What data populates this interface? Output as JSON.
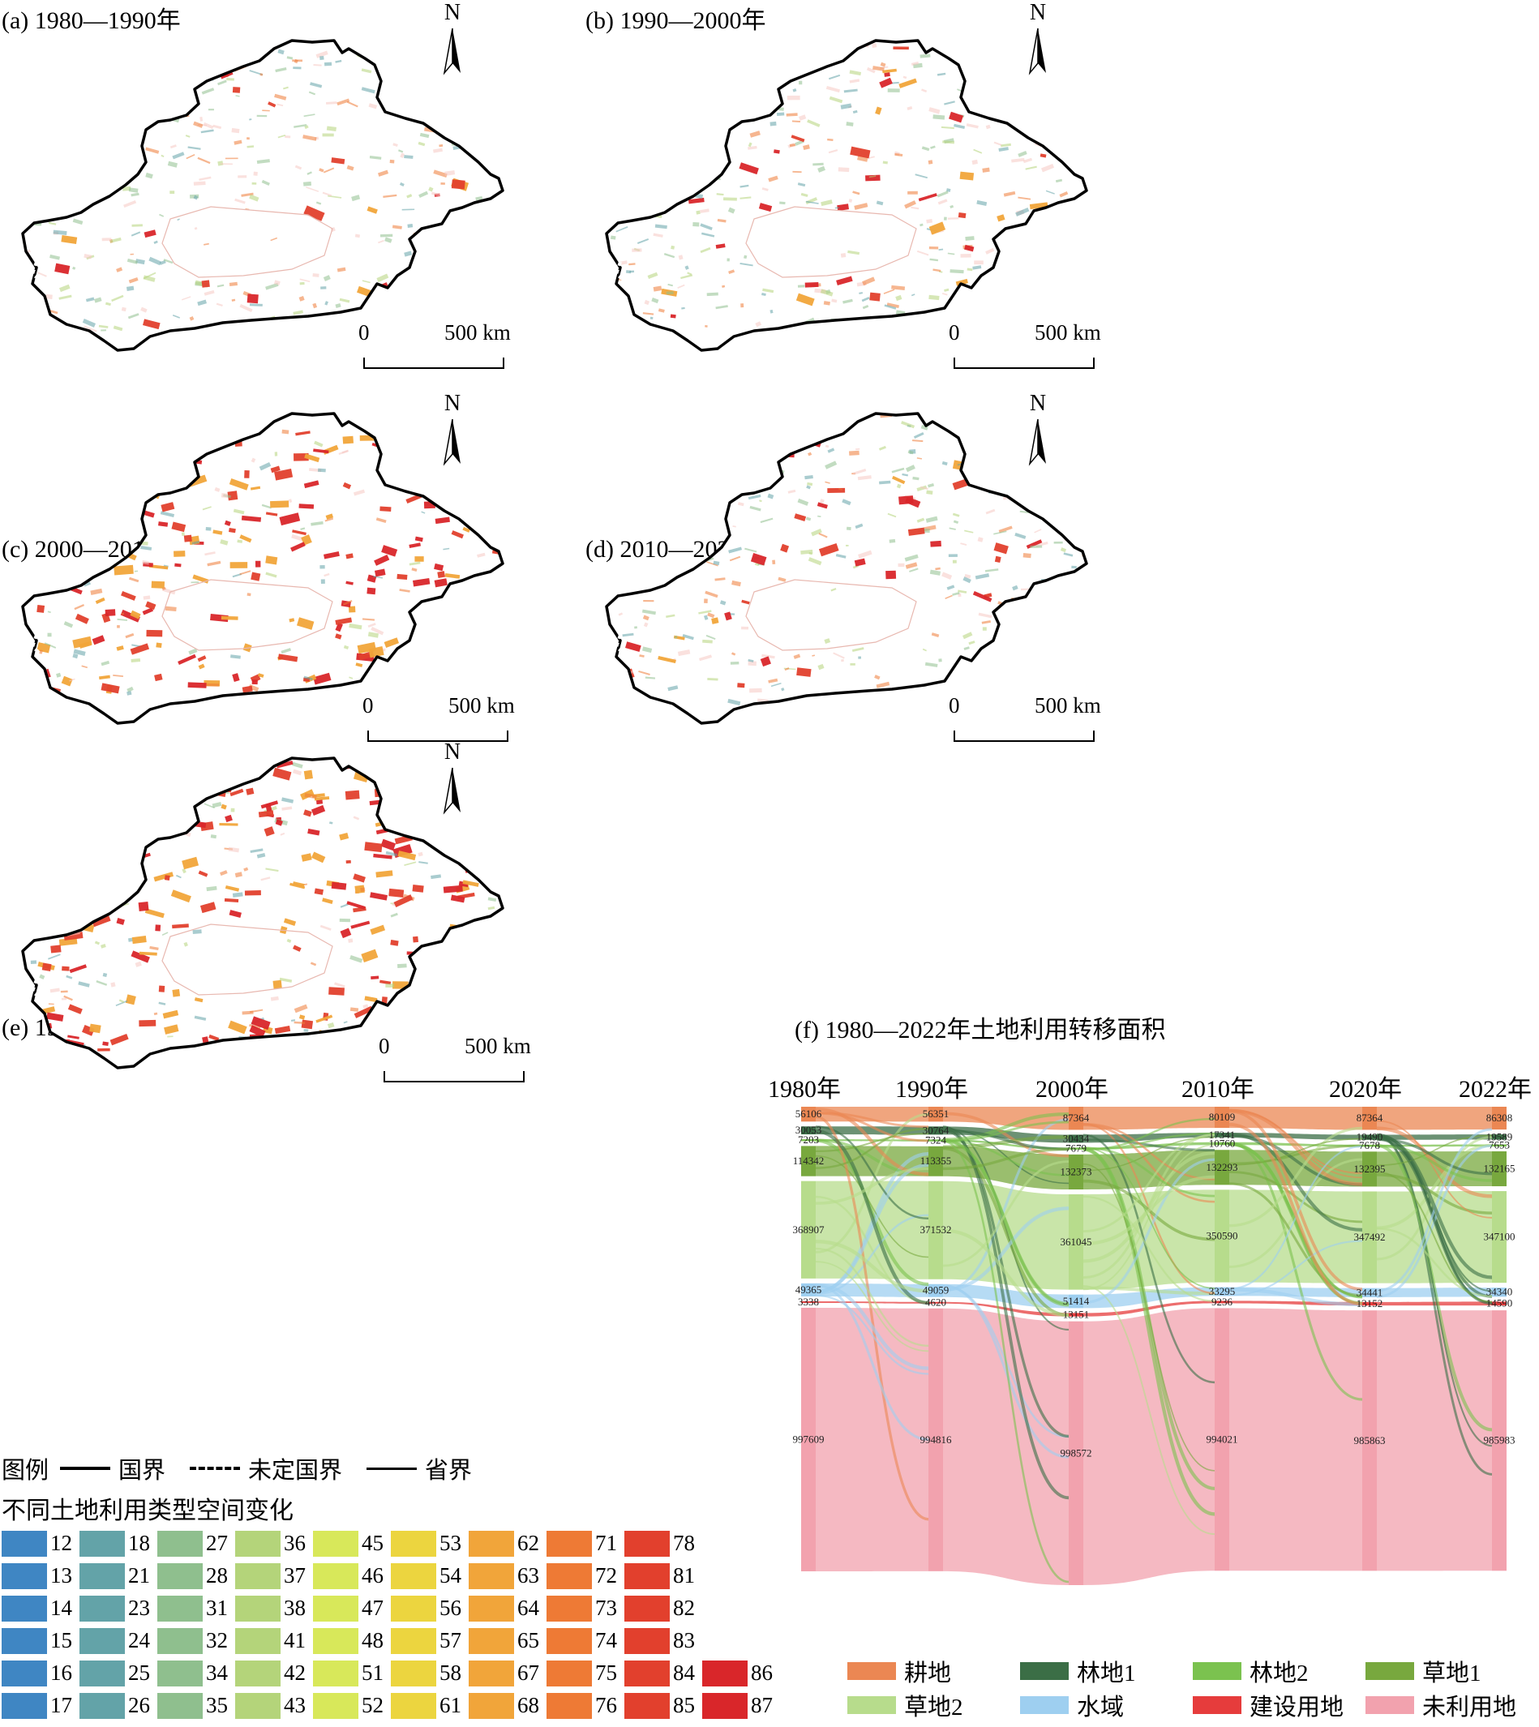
{
  "panels": [
    {
      "id": "a",
      "title": "(a) 1980—1990年",
      "scale": {
        "zero": "0",
        "label": "500 km"
      }
    },
    {
      "id": "b",
      "title": "(b) 1990—2000年",
      "scale": {
        "zero": "0",
        "label": "500 km"
      }
    },
    {
      "id": "c",
      "title": "(c) 2000—2010年",
      "scale": {
        "zero": "0",
        "label": "500 km"
      }
    },
    {
      "id": "d",
      "title": "(d) 2010—2022年",
      "scale": {
        "zero": "0",
        "label": "500 km"
      }
    },
    {
      "id": "e",
      "title": "(e) 1980—2022年",
      "scale": {
        "zero": "0",
        "label": "500 km"
      }
    }
  ],
  "north_label": "N",
  "boundary_legend": {
    "title": "图例",
    "items": [
      {
        "label": "国界",
        "style": "solid"
      },
      {
        "label": "未定国界",
        "style": "dashed"
      },
      {
        "label": "省界",
        "style": "thin"
      }
    ]
  },
  "change_legend": {
    "title": "不同土地利用类型空间变化",
    "columns": [
      {
        "color": "#3f86c3",
        "codes": [
          "12",
          "13",
          "14",
          "15",
          "16",
          "17"
        ]
      },
      {
        "color": "#63a3a8",
        "codes": [
          "18",
          "21",
          "23",
          "24",
          "25",
          "26"
        ]
      },
      {
        "color": "#8fbf8e",
        "codes": [
          "27",
          "28",
          "31",
          "32",
          "34",
          "35"
        ]
      },
      {
        "color": "#b4d47a",
        "codes": [
          "36",
          "37",
          "38",
          "41",
          "42",
          "43"
        ]
      },
      {
        "color": "#d8e85a",
        "codes": [
          "45",
          "46",
          "47",
          "48",
          "51",
          "52"
        ]
      },
      {
        "color": "#ecd53f",
        "codes": [
          "53",
          "54",
          "56",
          "57",
          "58",
          "61"
        ]
      },
      {
        "color": "#f1a53a",
        "codes": [
          "62",
          "63",
          "64",
          "65",
          "67",
          "68"
        ]
      },
      {
        "color": "#ee7a35",
        "codes": [
          "71",
          "72",
          "73",
          "74",
          "75",
          "76"
        ]
      },
      {
        "color": "#e2402d",
        "codes": [
          "78",
          "81",
          "82",
          "83",
          "84",
          "85"
        ]
      },
      {
        "color": "#d9262a",
        "codes": [
          "86",
          "87"
        ]
      }
    ]
  },
  "sankey": {
    "title": "(f) 1980—2022年土地利用转移面积",
    "legend": [
      {
        "label": "耕地",
        "color": "#eb8753"
      },
      {
        "label": "林地1",
        "color": "#3b6e46"
      },
      {
        "label": "林地2",
        "color": "#7bc24f"
      },
      {
        "label": "草地1",
        "color": "#78a83e"
      },
      {
        "label": "草地2",
        "color": "#b7dc8c"
      },
      {
        "label": "水域",
        "color": "#9ecff0"
      },
      {
        "label": "建设用地",
        "color": "#e63c3c"
      },
      {
        "label": "未利用地",
        "color": "#f2a2ae"
      }
    ]
  },
  "chart_data": {
    "type": "sankey",
    "title": "(f) 1980—2022年土地利用转移面积",
    "years": [
      "1980年",
      "1990年",
      "2000年",
      "2010年",
      "2020年",
      "2022年"
    ],
    "classes": [
      "耕地",
      "林地1",
      "林地2",
      "草地1",
      "草地2",
      "水域",
      "建设用地",
      "未利用地"
    ],
    "values": {
      "1980年": [
        56106,
        30053,
        7203,
        114342,
        368907,
        49365,
        3338,
        997609
      ],
      "1990年": [
        56351,
        30764,
        7324,
        113355,
        371532,
        49059,
        4620,
        994816
      ],
      "2000年": [
        87364,
        30434,
        7679,
        132373,
        361045,
        51414,
        13151,
        998572
      ],
      "2010年": [
        80109,
        17341,
        10760,
        132293,
        350590,
        33295,
        9236,
        994021
      ],
      "2020年": [
        87364,
        19490,
        7678,
        132395,
        347492,
        34441,
        13152,
        985863
      ],
      "2022年": [
        86308,
        19589,
        7653,
        132165,
        347100,
        34340,
        14590,
        985983
      ]
    }
  }
}
